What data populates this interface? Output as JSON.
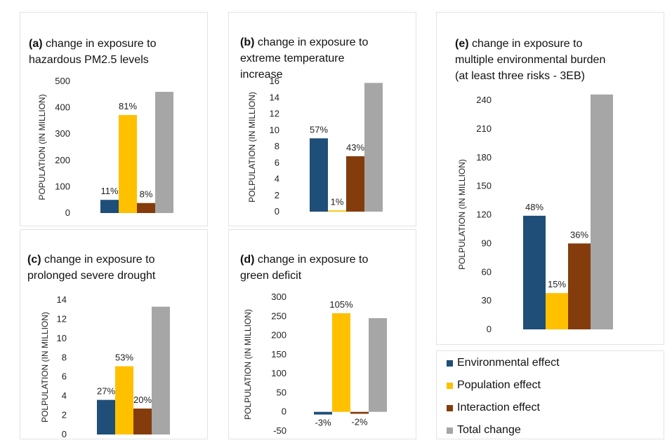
{
  "colors": {
    "environmental": "#1f4e79",
    "population": "#ffc000",
    "interaction": "#843c0c",
    "total": "#a6a6a6"
  },
  "legend": [
    {
      "label": "Environmental effect",
      "color": "#1f4e79"
    },
    {
      "label": "Population effect",
      "color": "#ffc000"
    },
    {
      "label": "Interaction effect",
      "color": "#843c0c"
    },
    {
      "label": "Total change",
      "color": "#a6a6a6"
    }
  ],
  "chart_data": [
    {
      "id": "a",
      "type": "bar",
      "panel_label": "(a)",
      "title": "change in exposure to\nhazardous PM2.5 levels",
      "ylabel": "POPULATION (IN  MILLION)",
      "ylim": [
        0,
        500
      ],
      "yticks": [
        "0",
        "100",
        "200",
        "300",
        "400",
        "500"
      ],
      "categories": [
        "Environmental effect",
        "Population effect",
        "Interaction effect",
        "Total change"
      ],
      "values": [
        50,
        372,
        38,
        460
      ],
      "data_labels": [
        "11%",
        "81%",
        "8%",
        ""
      ]
    },
    {
      "id": "b",
      "type": "bar",
      "panel_label": "(b)",
      "title": "change in exposure to\nextreme temperature\nincrease",
      "ylabel": "POLPULATION (IN MILLION)",
      "ylim": [
        0,
        16
      ],
      "yticks": [
        "0",
        "2",
        "4",
        "6",
        "8",
        "10",
        "12",
        "14",
        "16"
      ],
      "categories": [
        "Environmental effect",
        "Population effect",
        "Interaction effect",
        "Total change"
      ],
      "values": [
        9.0,
        0.15,
        6.8,
        15.8
      ],
      "data_labels": [
        "57%",
        "1%",
        "43%",
        ""
      ]
    },
    {
      "id": "c",
      "type": "bar",
      "panel_label": "(c)",
      "title": "change in exposure to\nprolonged severe drought",
      "ylabel": "POLPULATION (IN MILLION)",
      "ylim": [
        0,
        14
      ],
      "yticks": [
        "0",
        "2",
        "4",
        "6",
        "8",
        "10",
        "12",
        "14"
      ],
      "categories": [
        "Environmental effect",
        "Population effect",
        "Interaction effect",
        "Total change"
      ],
      "values": [
        3.6,
        7.1,
        2.7,
        13.3
      ],
      "data_labels": [
        "27%",
        "53%",
        "20%",
        ""
      ]
    },
    {
      "id": "d",
      "type": "bar",
      "panel_label": "(d)",
      "title": "change in exposure to\ngreen deficit",
      "ylabel": "POLPULATION (IN MILLION)",
      "ylim": [
        -50,
        300
      ],
      "yticks": [
        "-50",
        "0",
        "50",
        "100",
        "150",
        "200",
        "250",
        "300"
      ],
      "categories": [
        "Environmental effect",
        "Population effect",
        "Interaction effect",
        "Total change"
      ],
      "values": [
        -7,
        258,
        -5,
        245
      ],
      "data_labels": [
        "-3%",
        "105%",
        "-2%",
        ""
      ]
    },
    {
      "id": "e",
      "type": "bar",
      "panel_label": "(e)",
      "title": "change in exposure to\nmultiple environmental burden\n(at least three risks - 3EB)",
      "ylabel": "POLPULATION (IN MILLION)",
      "ylim": [
        0,
        240
      ],
      "yticks": [
        "0",
        "30",
        "60",
        "90",
        "120",
        "150",
        "180",
        "210",
        "240"
      ],
      "categories": [
        "Environmental effect",
        "Population effect",
        "Interaction effect",
        "Total change"
      ],
      "values": [
        119,
        38,
        90,
        246
      ],
      "data_labels": [
        "48%",
        "15%",
        "36%",
        ""
      ]
    }
  ]
}
